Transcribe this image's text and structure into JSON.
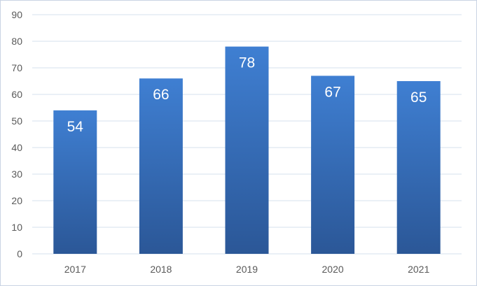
{
  "chart_data": {
    "type": "bar",
    "title": "",
    "xlabel": "",
    "ylabel": "",
    "categories": [
      "2017",
      "2018",
      "2019",
      "2020",
      "2021"
    ],
    "values": [
      54,
      66,
      78,
      67,
      65
    ],
    "data_labels": [
      "54",
      "66",
      "78",
      "67",
      "65"
    ],
    "ylim": [
      0,
      90
    ],
    "yticks": [
      0,
      10,
      20,
      30,
      40,
      50,
      60,
      70,
      80,
      90
    ],
    "grid": true,
    "legend": "none",
    "colors": {
      "bar_top": "#3f7fd2",
      "bar_bottom": "#2b5797",
      "grid": "#d6e0ee",
      "tick_text": "#595959",
      "label_text": "#ffffff"
    }
  }
}
